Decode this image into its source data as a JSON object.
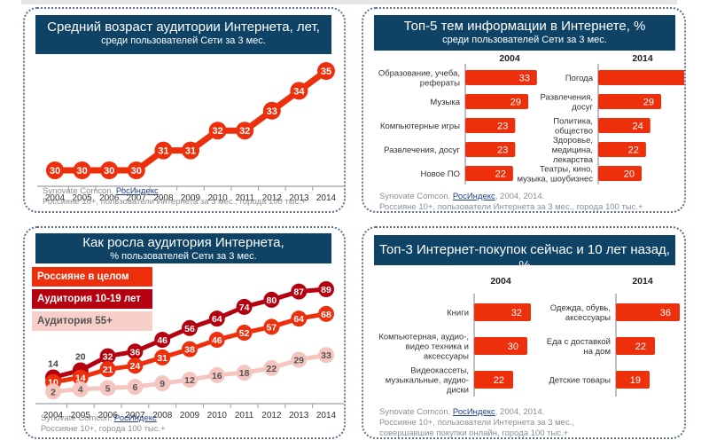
{
  "colors": {
    "title_bg": "#0e4366",
    "title_text": "#ffffff",
    "bar": "#ee2f0c",
    "line_main": "#ee2f0c",
    "line_teen": "#b5000f",
    "line_senior": "#f5c6bf",
    "senior_text": "#555555"
  },
  "panels": {
    "age": {
      "title": "Средний возраст аудитории Интернета, лет,",
      "subtitle": "среди пользователей Сети за 3 мес.",
      "source_prefix": "Synovate Comcon.",
      "source_link": "РосИндекс",
      "source_note": "Россияне 10+, пользователи Интернета за 3 мес., города 100 тыс.+"
    },
    "topics": {
      "title": "Топ-5 тем информации в Интернете, %",
      "subtitle": "среди пользователей Сети за 3 мес.",
      "source_prefix": "Synovate Comcon.",
      "source_link": "РосИндекс",
      "source_suffix": ", 2004, 2014.",
      "source_note": "Россияне 10+, пользователи Интернета за 3 мес., города 100 тыс.+"
    },
    "growth": {
      "title": "Как росла аудитория Интернета,",
      "subtitle": "% пользователей Сети за 3 мес.",
      "legend": [
        "Россияне в целом",
        "Аудитория 10-19 лет",
        "Аудитория 55+"
      ],
      "source_prefix": "Synovate Comcon.",
      "source_link": "РосИндекс",
      "source_note": "Россияне 10+, города 100 тыс.+"
    },
    "purchases": {
      "title": "Топ-3 Интернет-покупок сейчас и 10 лет назад, %",
      "source_prefix": "Synovate Comcon.",
      "source_link": "РосИндекс",
      "source_suffix": ", 2004, 2014.",
      "source_note_1": "Россияне 10+, пользователи Интернета за 3 мес.,",
      "source_note_2": "совершавшие покупки онлайн, города 100 тыс.+"
    }
  },
  "chart_data": [
    {
      "type": "line",
      "title": "Средний возраст аудитории Интернета, лет,",
      "subtitle": "среди пользователей Сети за 3 мес.",
      "x": [
        "2004",
        "2005",
        "2006",
        "2007",
        "2008",
        "2009",
        "2010",
        "2011",
        "2012",
        "2013",
        "2014"
      ],
      "series": [
        {
          "name": "Средний возраст",
          "values": [
            30,
            30,
            30,
            30,
            31,
            31,
            32,
            32,
            33,
            34,
            35
          ]
        }
      ],
      "xlabel": "",
      "ylabel": "",
      "grid": false,
      "legend": "none"
    },
    {
      "type": "bar",
      "orientation": "horizontal",
      "title": "Топ-5 тем информации в Интернете, %",
      "subtitle": "среди пользователей Сети за 3 мес.",
      "groups": [
        {
          "name": "2004",
          "categories": [
            "Образование, учеба, рефераты",
            "Музыка",
            "Компьютерные игры",
            "Развлечения, досуг",
            "Новое ПО"
          ],
          "values": [
            33,
            29,
            23,
            23,
            22
          ]
        },
        {
          "name": "2014",
          "categories": [
            "Погода",
            "Развлечения, досуг",
            "Политика, общество",
            "Здоровье, медицина, лекарства",
            "Театры, кино, музыка, шоубизнес"
          ],
          "values": [
            49,
            29,
            24,
            22,
            20
          ]
        }
      ]
    },
    {
      "type": "line",
      "title": "Как росла аудитория Интернета,",
      "subtitle": "% пользователей Сети за 3 мес.",
      "x": [
        "2004",
        "2005",
        "2006",
        "2007",
        "2008",
        "2009",
        "2010",
        "2011",
        "2012",
        "2013",
        "2014"
      ],
      "series": [
        {
          "name": "Аудитория 10-19 лет",
          "values": [
            14,
            20,
            32,
            36,
            46,
            56,
            64,
            74,
            80,
            87,
            89
          ]
        },
        {
          "name": "Россияне в целом",
          "values": [
            10,
            14,
            21,
            24,
            31,
            38,
            46,
            52,
            57,
            64,
            68
          ]
        },
        {
          "name": "Аудитория 55+",
          "values": [
            2,
            4,
            5,
            6,
            9,
            12,
            16,
            18,
            22,
            29,
            33
          ]
        }
      ],
      "legend": "top-left",
      "grid": false
    },
    {
      "type": "bar",
      "orientation": "horizontal",
      "title": "Топ-3 Интернет-покупок сейчас и 10 лет назад, %",
      "groups": [
        {
          "name": "2004",
          "categories": [
            "Книги",
            "Компьютерная, аудио-, видео техника и аксессуары",
            "Видеокассеты, музыкальные, аудио-диски"
          ],
          "values": [
            32,
            30,
            22
          ]
        },
        {
          "name": "2014",
          "categories": [
            "Одежда, обувь, аксессуары",
            "Еда с доставкой на дом",
            "Детские товары"
          ],
          "values": [
            36,
            22,
            19
          ]
        }
      ]
    }
  ]
}
